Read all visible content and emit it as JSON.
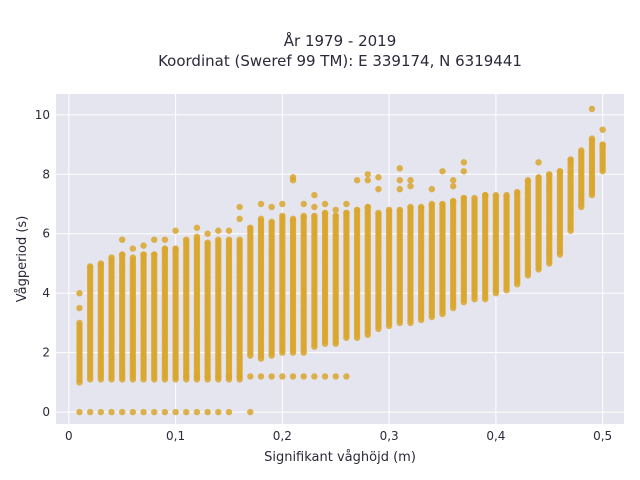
{
  "chart_data": {
    "type": "scatter",
    "title_line1": "År 1979 - 2019",
    "title_line2": "Koordinat (Sweref 99 TM): E 339174, N 6319441",
    "xlabel": "Signifikant våghöjd (m)",
    "ylabel": "Vågperiod (s)",
    "xlim": [
      -0.012,
      0.52
    ],
    "ylim": [
      -0.4,
      10.7
    ],
    "x_ticks": [
      0,
      0.1,
      0.2,
      0.3,
      0.4,
      0.5
    ],
    "x_tick_labels": [
      "0",
      "0,1",
      "0,2",
      "0,3",
      "0,4",
      "0,5"
    ],
    "y_ticks": [
      0,
      2,
      4,
      6,
      8,
      10
    ],
    "y_tick_labels": [
      "0",
      "2",
      "4",
      "6",
      "8",
      "10"
    ],
    "grid": true,
    "point_color": "#d9a62b",
    "plot_background": "#e5e5ef",
    "column_step": 0.01,
    "columns": [
      {
        "x": 0.01,
        "y_min": 1.0,
        "y_max": 3.0,
        "outliers": [
          3.5,
          4.0
        ]
      },
      {
        "x": 0.02,
        "y_min": 1.1,
        "y_max": 4.9,
        "outliers": []
      },
      {
        "x": 0.03,
        "y_min": 1.1,
        "y_max": 5.0,
        "outliers": []
      },
      {
        "x": 0.04,
        "y_min": 1.1,
        "y_max": 5.2,
        "outliers": []
      },
      {
        "x": 0.05,
        "y_min": 1.1,
        "y_max": 5.3,
        "outliers": [
          5.8
        ]
      },
      {
        "x": 0.06,
        "y_min": 1.1,
        "y_max": 5.2,
        "outliers": [
          5.5
        ]
      },
      {
        "x": 0.07,
        "y_min": 1.1,
        "y_max": 5.3,
        "outliers": [
          5.6
        ]
      },
      {
        "x": 0.08,
        "y_min": 1.1,
        "y_max": 5.3,
        "outliers": [
          5.8
        ]
      },
      {
        "x": 0.09,
        "y_min": 1.1,
        "y_max": 5.5,
        "outliers": [
          5.8
        ]
      },
      {
        "x": 0.1,
        "y_min": 1.1,
        "y_max": 5.5,
        "outliers": [
          6.1
        ]
      },
      {
        "x": 0.11,
        "y_min": 1.1,
        "y_max": 5.8,
        "outliers": []
      },
      {
        "x": 0.12,
        "y_min": 1.1,
        "y_max": 5.9,
        "outliers": [
          6.2
        ]
      },
      {
        "x": 0.13,
        "y_min": 1.1,
        "y_max": 5.7,
        "outliers": [
          6.0
        ]
      },
      {
        "x": 0.14,
        "y_min": 1.1,
        "y_max": 5.8,
        "outliers": [
          6.1
        ]
      },
      {
        "x": 0.15,
        "y_min": 1.1,
        "y_max": 5.8,
        "outliers": [
          6.1
        ]
      },
      {
        "x": 0.16,
        "y_min": 1.1,
        "y_max": 5.8,
        "outliers": [
          6.5,
          6.9
        ]
      },
      {
        "x": 0.17,
        "y_min": 1.9,
        "y_max": 6.2,
        "outliers": []
      },
      {
        "x": 0.18,
        "y_min": 1.8,
        "y_max": 6.5,
        "outliers": [
          7.0
        ]
      },
      {
        "x": 0.19,
        "y_min": 1.9,
        "y_max": 6.4,
        "outliers": [
          6.9
        ]
      },
      {
        "x": 0.2,
        "y_min": 2.0,
        "y_max": 6.6,
        "outliers": [
          7.0
        ]
      },
      {
        "x": 0.21,
        "y_min": 2.0,
        "y_max": 6.5,
        "outliers": [
          7.8,
          7.9
        ]
      },
      {
        "x": 0.22,
        "y_min": 2.0,
        "y_max": 6.6,
        "outliers": [
          7.0
        ]
      },
      {
        "x": 0.23,
        "y_min": 2.2,
        "y_max": 6.6,
        "outliers": [
          6.9,
          7.3
        ]
      },
      {
        "x": 0.24,
        "y_min": 2.3,
        "y_max": 6.7,
        "outliers": [
          7.0
        ]
      },
      {
        "x": 0.25,
        "y_min": 2.3,
        "y_max": 6.6,
        "outliers": [
          6.8
        ]
      },
      {
        "x": 0.26,
        "y_min": 2.5,
        "y_max": 6.7,
        "outliers": [
          7.0
        ]
      },
      {
        "x": 0.27,
        "y_min": 2.5,
        "y_max": 6.8,
        "outliers": [
          7.8
        ]
      },
      {
        "x": 0.28,
        "y_min": 2.6,
        "y_max": 6.9,
        "outliers": [
          7.8,
          8.0
        ]
      },
      {
        "x": 0.29,
        "y_min": 2.8,
        "y_max": 6.7,
        "outliers": [
          7.5,
          7.9
        ]
      },
      {
        "x": 0.3,
        "y_min": 2.9,
        "y_max": 6.8,
        "outliers": []
      },
      {
        "x": 0.31,
        "y_min": 3.0,
        "y_max": 6.8,
        "outliers": [
          7.5,
          7.8,
          8.2
        ]
      },
      {
        "x": 0.32,
        "y_min": 3.0,
        "y_max": 6.9,
        "outliers": [
          7.6,
          7.8
        ]
      },
      {
        "x": 0.33,
        "y_min": 3.1,
        "y_max": 6.9,
        "outliers": []
      },
      {
        "x": 0.34,
        "y_min": 3.2,
        "y_max": 7.0,
        "outliers": [
          7.5
        ]
      },
      {
        "x": 0.35,
        "y_min": 3.3,
        "y_max": 7.0,
        "outliers": [
          8.1
        ]
      },
      {
        "x": 0.36,
        "y_min": 3.5,
        "y_max": 7.1,
        "outliers": [
          7.6,
          7.8
        ]
      },
      {
        "x": 0.37,
        "y_min": 3.7,
        "y_max": 7.2,
        "outliers": [
          8.1,
          8.4
        ]
      },
      {
        "x": 0.38,
        "y_min": 3.8,
        "y_max": 7.2,
        "outliers": []
      },
      {
        "x": 0.39,
        "y_min": 3.8,
        "y_max": 7.3,
        "outliers": []
      },
      {
        "x": 0.4,
        "y_min": 4.0,
        "y_max": 7.3,
        "outliers": []
      },
      {
        "x": 0.41,
        "y_min": 4.1,
        "y_max": 7.3,
        "outliers": []
      },
      {
        "x": 0.42,
        "y_min": 4.3,
        "y_max": 7.4,
        "outliers": []
      },
      {
        "x": 0.43,
        "y_min": 4.6,
        "y_max": 7.8,
        "outliers": []
      },
      {
        "x": 0.44,
        "y_min": 4.8,
        "y_max": 7.9,
        "outliers": [
          8.4
        ]
      },
      {
        "x": 0.45,
        "y_min": 5.0,
        "y_max": 8.0,
        "outliers": []
      },
      {
        "x": 0.46,
        "y_min": 5.3,
        "y_max": 8.1,
        "outliers": []
      },
      {
        "x": 0.47,
        "y_min": 6.1,
        "y_max": 8.5,
        "outliers": []
      },
      {
        "x": 0.48,
        "y_min": 6.9,
        "y_max": 8.8,
        "outliers": []
      },
      {
        "x": 0.49,
        "y_min": 7.3,
        "y_max": 9.2,
        "outliers": [
          10.2
        ]
      },
      {
        "x": 0.5,
        "y_min": 8.1,
        "y_max": 9.0,
        "outliers": [
          9.5
        ]
      }
    ],
    "zero_points_x": [
      0.01,
      0.02,
      0.03,
      0.04,
      0.05,
      0.06,
      0.07,
      0.08,
      0.09,
      0.1,
      0.11,
      0.12,
      0.13,
      0.14,
      0.15,
      0.17
    ],
    "low_band": {
      "y": 1.2,
      "x": [
        0.11,
        0.12,
        0.13,
        0.14,
        0.15,
        0.16,
        0.17,
        0.18,
        0.19,
        0.2,
        0.21,
        0.22,
        0.23,
        0.24,
        0.25,
        0.26
      ]
    }
  }
}
